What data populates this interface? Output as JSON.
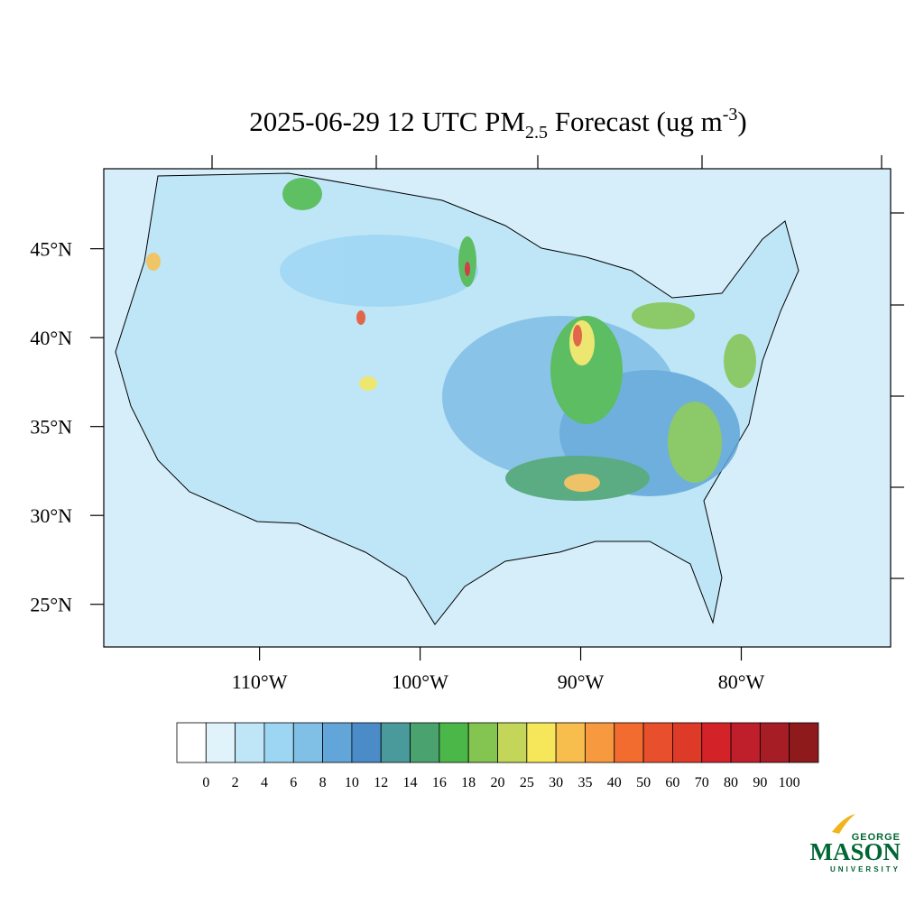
{
  "chart_data": {
    "type": "map",
    "title": {
      "main": "2025-06-29 12 UTC PM",
      "subscript": "2.5",
      "middle": " Forecast (ug m",
      "superscript": "-3",
      "end": ")"
    },
    "xlim": [
      -119.7,
      -70.7
    ],
    "ylim": [
      22.6,
      49.5
    ],
    "xticks": [
      {
        "value": -110,
        "label": "110°W"
      },
      {
        "value": -100,
        "label": "100°W"
      },
      {
        "value": -90,
        "label": "90°W"
      },
      {
        "value": -80,
        "label": "80°W"
      }
    ],
    "yticks": [
      {
        "value": 45,
        "label": "45°N"
      },
      {
        "value": 40,
        "label": "40°N"
      },
      {
        "value": 35,
        "label": "35°N"
      },
      {
        "value": 30,
        "label": "30°N"
      },
      {
        "value": 25,
        "label": "25°N"
      }
    ],
    "colorbar": {
      "levels": [
        0,
        2,
        4,
        6,
        8,
        10,
        12,
        14,
        16,
        18,
        20,
        25,
        30,
        35,
        40,
        50,
        60,
        70,
        80,
        90,
        100
      ],
      "colors": [
        "#ffffff",
        "#e0f3fb",
        "#bfe6f7",
        "#9dd6f3",
        "#80bfe6",
        "#62a6d9",
        "#4a8bc8",
        "#4a9a9c",
        "#4aa36f",
        "#4cb749",
        "#84c450",
        "#c3d65a",
        "#f6e65a",
        "#f7be4e",
        "#f79a3f",
        "#f26c30",
        "#e8502d",
        "#de3a28",
        "#d32328",
        "#bf1f2a",
        "#a71d25",
        "#8e1a1c"
      ]
    }
  },
  "logo": {
    "top": "GEORGE",
    "main": "MASON",
    "bottom": "UNIVERSITY"
  }
}
